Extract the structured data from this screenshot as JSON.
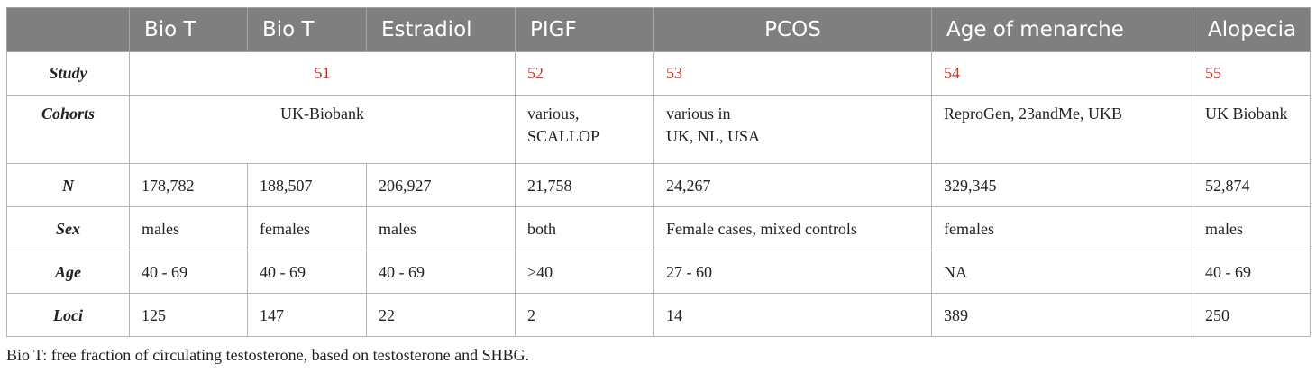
{
  "header": {
    "blank": "",
    "columns": [
      "Bio T",
      "Bio T",
      "Estradiol",
      "PIGF",
      "PCOS",
      "Age of menarche",
      "Alopecia"
    ]
  },
  "rows": {
    "study": {
      "label": "Study",
      "values": [
        "51",
        "52",
        "53",
        "54",
        "55"
      ]
    },
    "cohorts": {
      "label": "Cohorts",
      "biobank": "UK-Biobank",
      "pigf": [
        "various,",
        "SCALLOP"
      ],
      "pcos": [
        "various in",
        "UK, NL, USA"
      ],
      "menarche": "ReproGen, 23andMe, UKB",
      "alopecia": "UK Biobank"
    },
    "n": {
      "label": "N",
      "values": [
        "178,782",
        "188,507",
        "206,927",
        "21,758",
        "24,267",
        "329,345",
        "52,874"
      ]
    },
    "sex": {
      "label": "Sex",
      "values": [
        "males",
        "females",
        "males",
        "both",
        "Female cases, mixed controls",
        "females",
        "males"
      ]
    },
    "age": {
      "label": "Age",
      "values": [
        "40 - 69",
        "40 - 69",
        "40 - 69",
        ">40",
        "27 - 60",
        "NA",
        "40 - 69"
      ]
    },
    "loci": {
      "label": "Loci",
      "values": [
        "125",
        "147",
        "22",
        "2",
        "14",
        "389",
        "250"
      ]
    }
  },
  "caption": "Bio T: free fraction of circulating testosterone, based on testosterone and SHBG.",
  "colors": {
    "header_bg": "#7f7f7f",
    "header_text": "#ffffff",
    "reference": "#c0392b",
    "border": "#b4b4b4"
  }
}
